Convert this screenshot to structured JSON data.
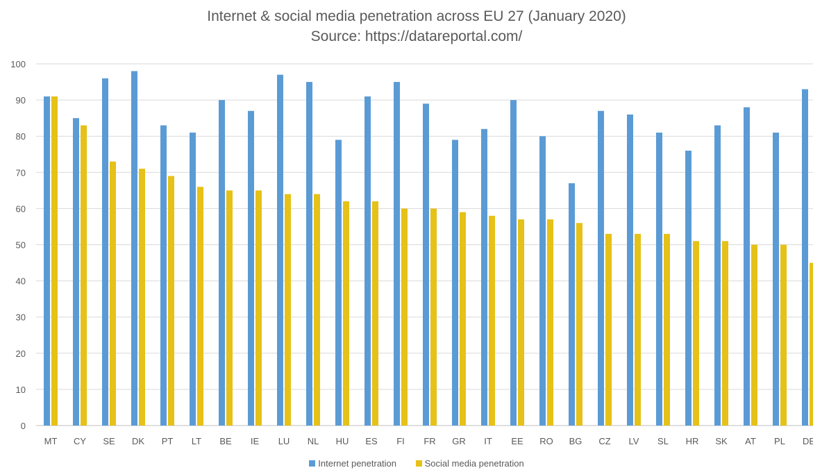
{
  "chart_data": {
    "type": "bar",
    "title": "Internet & social media penetration across EU 27 (January 2020)",
    "subtitle": "Source: https://datareportal.com/",
    "categories": [
      "MT",
      "CY",
      "SE",
      "DK",
      "PT",
      "LT",
      "BE",
      "IE",
      "LU",
      "NL",
      "HU",
      "ES",
      "FI",
      "FR",
      "GR",
      "IT",
      "EE",
      "RO",
      "BG",
      "CZ",
      "LV",
      "SL",
      "HR",
      "SK",
      "AT",
      "PL",
      "DE"
    ],
    "series": [
      {
        "name": "Internet penetration",
        "color": "#5B9BD5",
        "values": [
          91,
          85,
          96,
          98,
          83,
          81,
          90,
          87,
          97,
          95,
          79,
          91,
          95,
          89,
          79,
          82,
          90,
          80,
          67,
          87,
          86,
          81,
          76,
          83,
          88,
          81,
          93
        ]
      },
      {
        "name": "Social media penetration",
        "color": "#E6C117",
        "values": [
          91,
          83,
          73,
          71,
          69,
          66,
          65,
          65,
          64,
          64,
          62,
          62,
          60,
          60,
          59,
          58,
          57,
          57,
          56,
          53,
          53,
          53,
          51,
          51,
          50,
          50,
          45
        ]
      }
    ],
    "ylim": [
      0,
      100
    ],
    "yticks": [
      0,
      10,
      20,
      30,
      40,
      50,
      60,
      70,
      80,
      90,
      100
    ],
    "grid": true,
    "legend": "bottom",
    "xlabel": "",
    "ylabel": ""
  }
}
